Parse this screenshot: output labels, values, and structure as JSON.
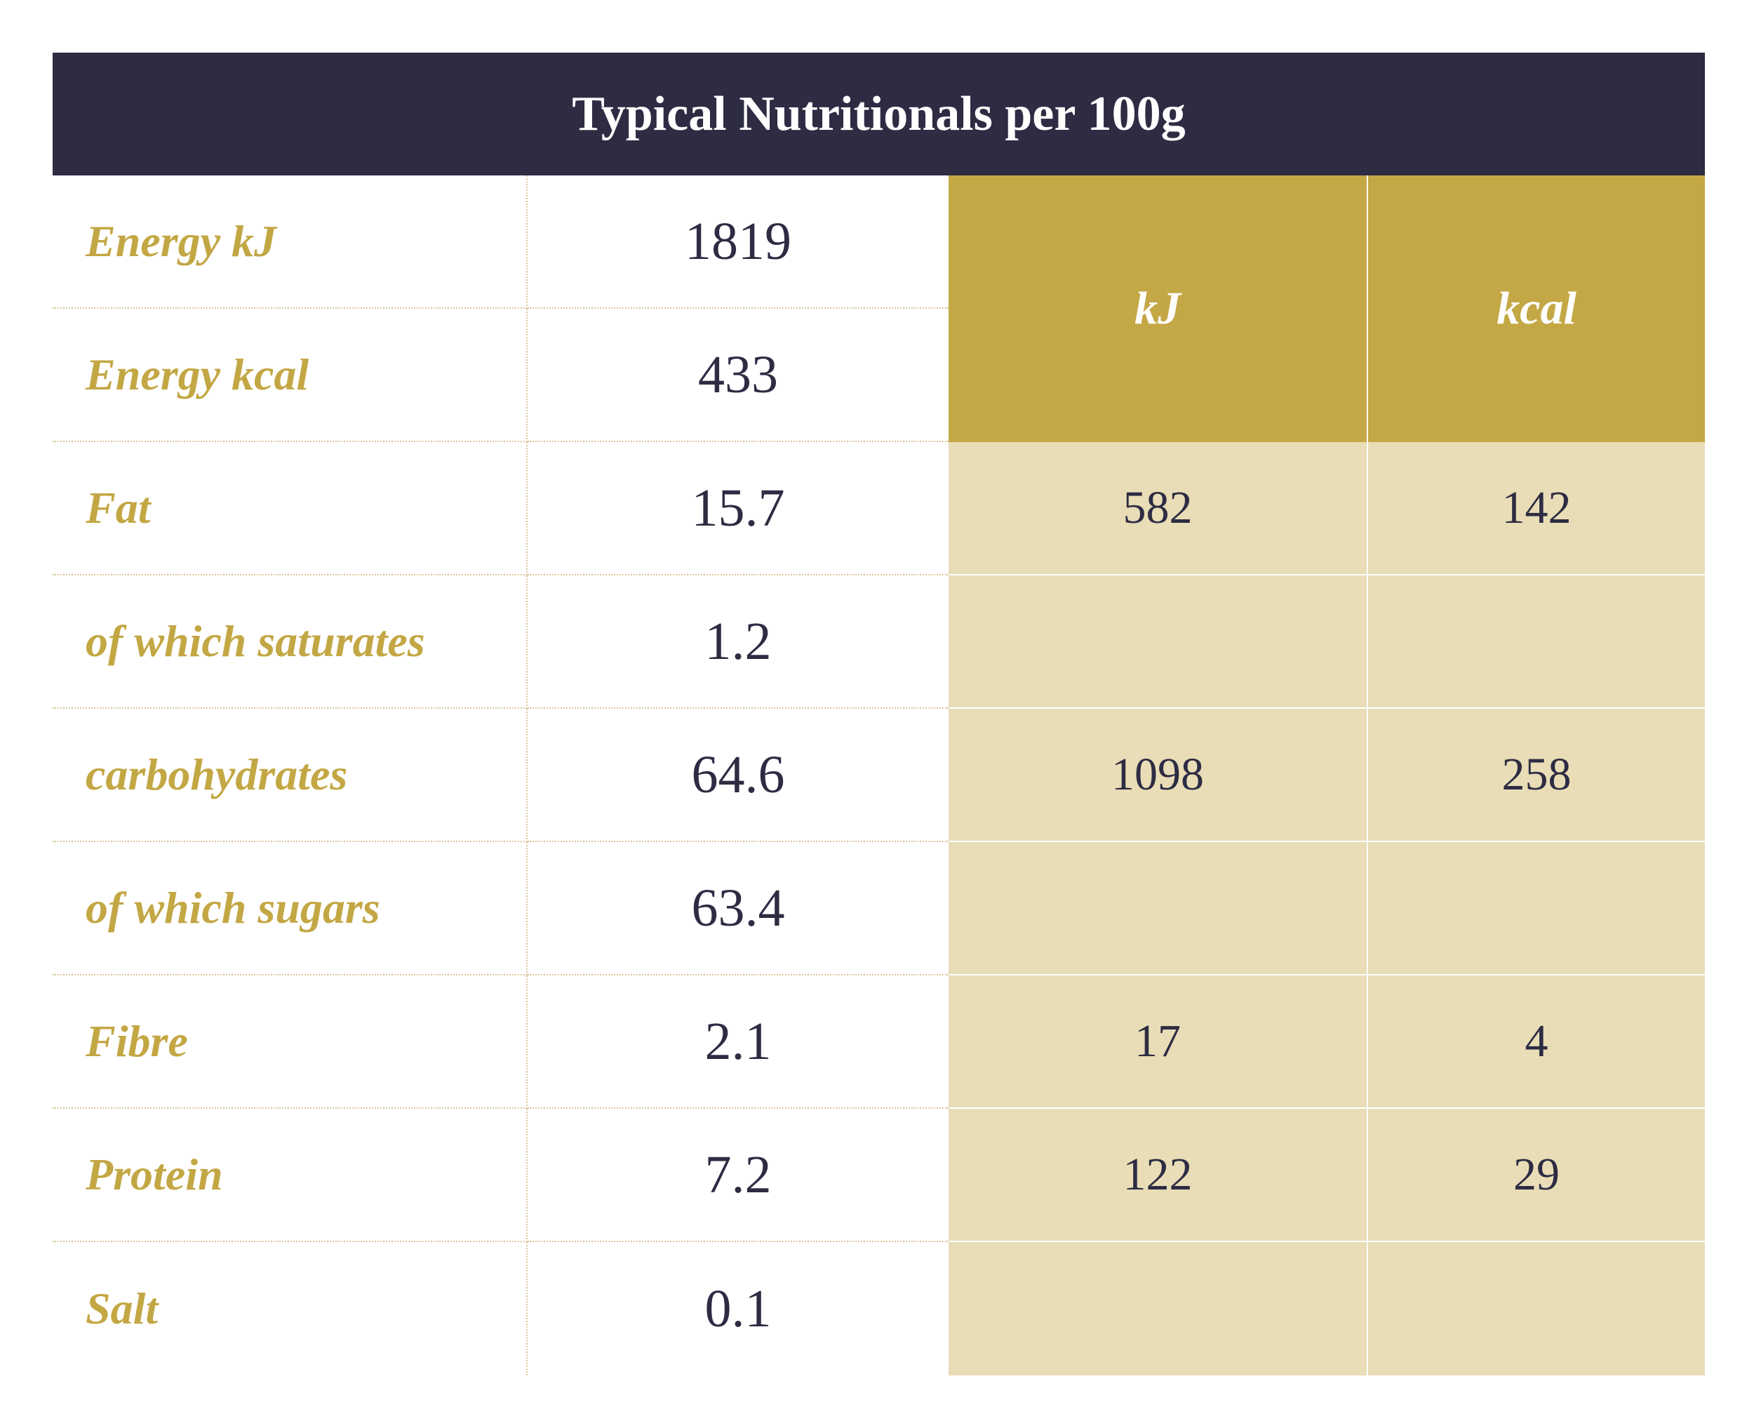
{
  "title": "Typical Nutritionals per 100g",
  "headers": {
    "kj": "kJ",
    "kcal": "kcal"
  },
  "rows": [
    {
      "label": "Energy kJ",
      "value": "1819"
    },
    {
      "label": "Energy kcal",
      "value": "433"
    },
    {
      "label": "Fat",
      "value": "15.7",
      "kj": "582",
      "kcal": "142"
    },
    {
      "label": "of which saturates",
      "value": "1.2",
      "kj": "",
      "kcal": ""
    },
    {
      "label": "carbohydrates",
      "value": "64.6",
      "kj": "1098",
      "kcal": "258"
    },
    {
      "label": "of which sugars",
      "value": "63.4",
      "kj": "",
      "kcal": ""
    },
    {
      "label": "Fibre",
      "value": "2.1",
      "kj": "17",
      "kcal": "4"
    },
    {
      "label": "Protein",
      "value": "7.2",
      "kj": "122",
      "kcal": "29"
    },
    {
      "label": "Salt",
      "value": "0.1",
      "kj": "",
      "kcal": ""
    }
  ],
  "colors": {
    "navy": "#2d2c43",
    "gold": "#c4a845",
    "beige": "#e8ddb6"
  }
}
